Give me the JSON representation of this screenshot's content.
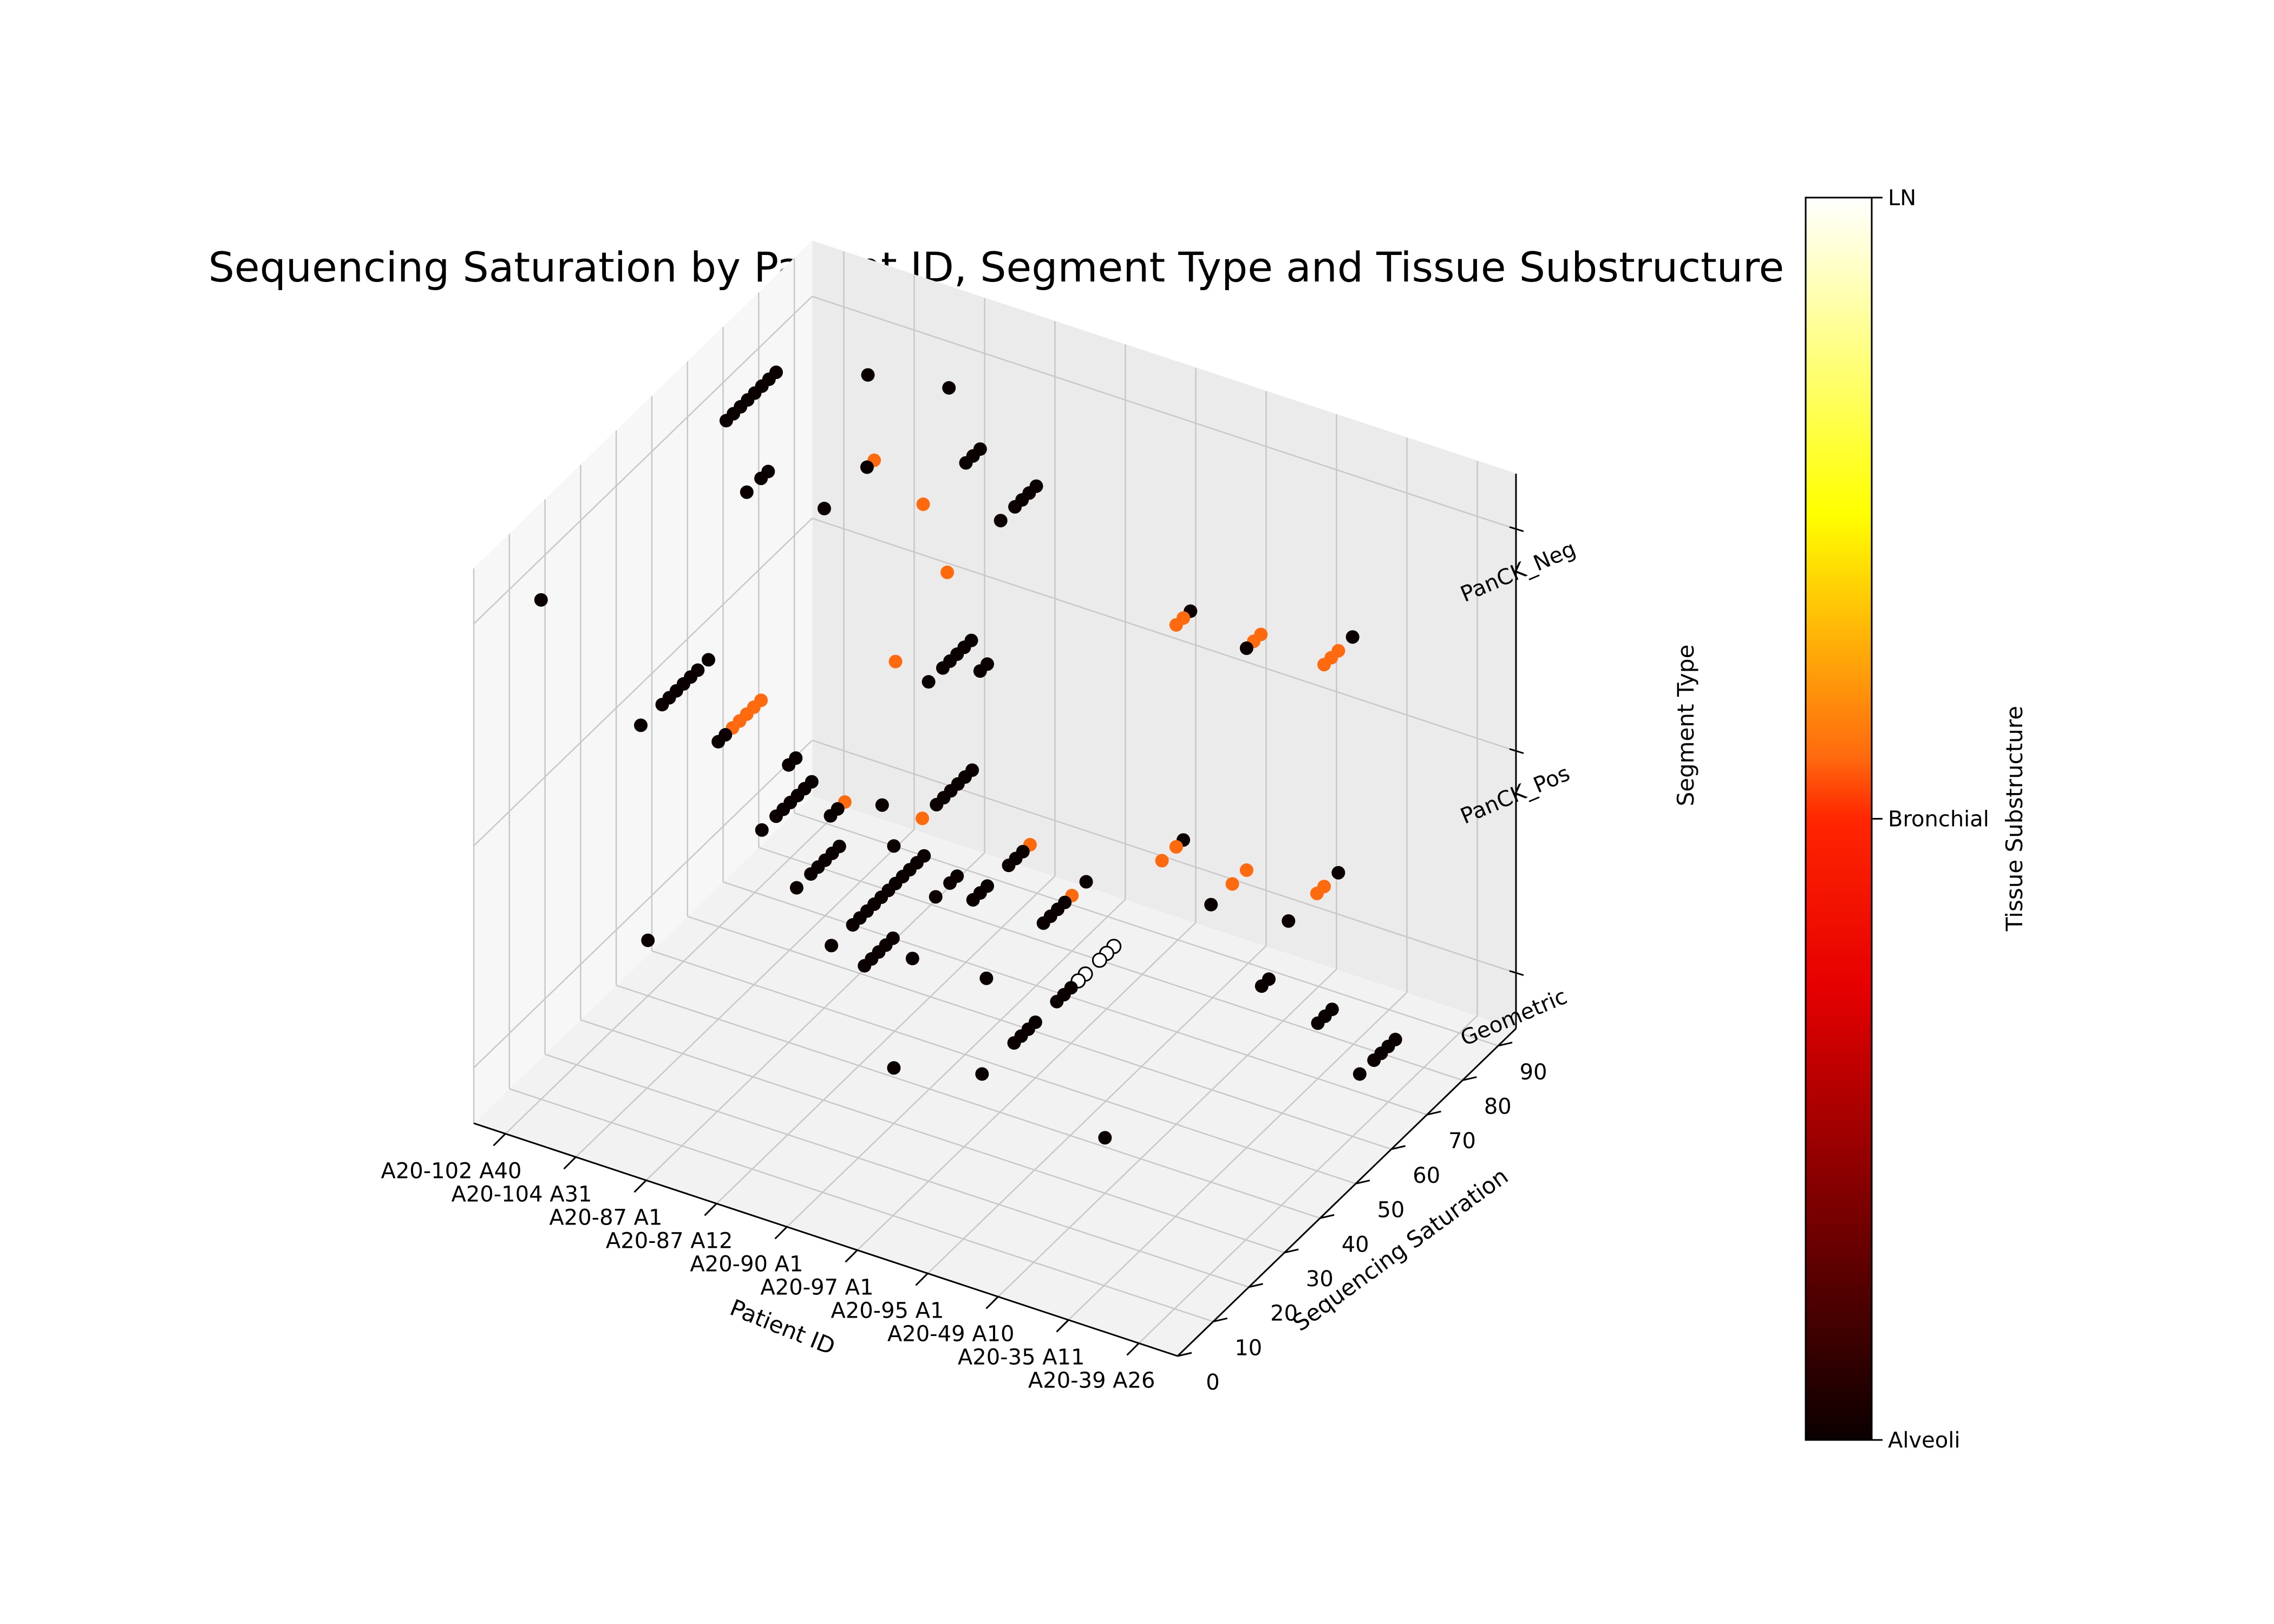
{
  "chart_data": {
    "type": "scatter",
    "projection": "3d",
    "title": "Sequencing Saturation by Patient ID, Segment Type and Tissue Substructure",
    "xlabel": "Patient ID",
    "ylabel": "Sequencing Saturation",
    "zlabel": "Segment Type",
    "x_categories": [
      "A20-102 A40",
      "A20-104 A31",
      "A20-87 A1",
      "A20-87 A12",
      "A20-90 A1",
      "A20-97 A1",
      "A20-95 A1",
      "A20-49 A10",
      "A20-35 A11",
      "A20-39 A26"
    ],
    "z_categories": [
      "Geometric",
      "PanCK_Pos",
      "PanCK_Neg"
    ],
    "y_ticks": [
      0,
      10,
      20,
      30,
      40,
      50,
      60,
      70,
      80,
      90
    ],
    "ylim": [
      0,
      95
    ],
    "grid": true,
    "colorbar": {
      "label": "Tissue Substructure",
      "categories": [
        "Alveoli",
        "Bronchial",
        "LN"
      ],
      "colormap": "hot",
      "colors": {
        "Alveoli": "#0b0000",
        "Bronchial": "#ff6a0f",
        "LN": "#ffffff"
      }
    },
    "points": [
      {
        "x": 0,
        "z": 2,
        "y": 10,
        "c": 0
      },
      {
        "x": 0,
        "z": 2,
        "y": 62,
        "c": 0
      },
      {
        "x": 0,
        "z": 2,
        "y": 64,
        "c": 0
      },
      {
        "x": 0,
        "z": 2,
        "y": 66,
        "c": 0
      },
      {
        "x": 0,
        "z": 2,
        "y": 68,
        "c": 0
      },
      {
        "x": 0,
        "z": 2,
        "y": 70,
        "c": 0
      },
      {
        "x": 0,
        "z": 2,
        "y": 72,
        "c": 0
      },
      {
        "x": 0,
        "z": 2,
        "y": 74,
        "c": 0
      },
      {
        "x": 0,
        "z": 2,
        "y": 76,
        "c": 0
      },
      {
        "x": 1,
        "z": 2,
        "y": 48,
        "c": 0
      },
      {
        "x": 1,
        "z": 2,
        "y": 52,
        "c": 0
      },
      {
        "x": 1,
        "z": 2,
        "y": 54,
        "c": 0
      },
      {
        "x": 1,
        "z": 2,
        "y": 82,
        "c": 0
      },
      {
        "x": 2,
        "z": 2,
        "y": 50,
        "c": 0
      },
      {
        "x": 2,
        "z": 2,
        "y": 62,
        "c": 0
      },
      {
        "x": 2,
        "z": 2,
        "y": 64,
        "c": 1
      },
      {
        "x": 2,
        "z": 2,
        "y": 85,
        "c": 0
      },
      {
        "x": 3,
        "z": 2,
        "y": 58,
        "c": 1
      },
      {
        "x": 3,
        "z": 2,
        "y": 70,
        "c": 0
      },
      {
        "x": 3,
        "z": 2,
        "y": 72,
        "c": 0
      },
      {
        "x": 3,
        "z": 2,
        "y": 74,
        "c": 0
      },
      {
        "x": 4,
        "z": 2,
        "y": 45,
        "c": 1
      },
      {
        "x": 4,
        "z": 2,
        "y": 60,
        "c": 0
      },
      {
        "x": 4,
        "z": 2,
        "y": 64,
        "c": 0
      },
      {
        "x": 4,
        "z": 2,
        "y": 66,
        "c": 0
      },
      {
        "x": 4,
        "z": 2,
        "y": 68,
        "c": 0
      },
      {
        "x": 4,
        "z": 2,
        "y": 70,
        "c": 0
      },
      {
        "x": 5,
        "z": 2,
        "y": 20,
        "c": 0
      },
      {
        "x": 5,
        "z": 2,
        "y": 24,
        "c": 0
      },
      {
        "x": 5,
        "z": 2,
        "y": 26,
        "c": 0
      },
      {
        "x": 5,
        "z": 2,
        "y": 28,
        "c": 0
      },
      {
        "x": 5,
        "z": 2,
        "y": 30,
        "c": 0
      },
      {
        "x": 5,
        "z": 2,
        "y": 32,
        "c": 0
      },
      {
        "x": 7,
        "z": 2,
        "y": 50,
        "c": 1
      },
      {
        "x": 7,
        "z": 2,
        "y": 52,
        "c": 1
      },
      {
        "x": 7,
        "z": 2,
        "y": 54,
        "c": 0
      },
      {
        "x": 8,
        "z": 2,
        "y": 50,
        "c": 0
      },
      {
        "x": 8,
        "z": 2,
        "y": 52,
        "c": 1
      },
      {
        "x": 8,
        "z": 2,
        "y": 54,
        "c": 1
      },
      {
        "x": 9,
        "z": 2,
        "y": 52,
        "c": 1
      },
      {
        "x": 9,
        "z": 2,
        "y": 54,
        "c": 1
      },
      {
        "x": 9,
        "z": 2,
        "y": 56,
        "c": 1
      },
      {
        "x": 9,
        "z": 2,
        "y": 60,
        "c": 0
      },
      {
        "x": 0,
        "z": 1,
        "y": 38,
        "c": 0
      },
      {
        "x": 0,
        "z": 1,
        "y": 44,
        "c": 0
      },
      {
        "x": 0,
        "z": 1,
        "y": 46,
        "c": 0
      },
      {
        "x": 0,
        "z": 1,
        "y": 48,
        "c": 0
      },
      {
        "x": 0,
        "z": 1,
        "y": 50,
        "c": 0
      },
      {
        "x": 0,
        "z": 1,
        "y": 52,
        "c": 0
      },
      {
        "x": 0,
        "z": 1,
        "y": 54,
        "c": 0
      },
      {
        "x": 0,
        "z": 1,
        "y": 57,
        "c": 0
      },
      {
        "x": 1,
        "z": 1,
        "y": 40,
        "c": 0
      },
      {
        "x": 1,
        "z": 1,
        "y": 42,
        "c": 0
      },
      {
        "x": 1,
        "z": 1,
        "y": 44,
        "c": 1
      },
      {
        "x": 1,
        "z": 1,
        "y": 46,
        "c": 1
      },
      {
        "x": 1,
        "z": 1,
        "y": 48,
        "c": 1
      },
      {
        "x": 1,
        "z": 1,
        "y": 50,
        "c": 1
      },
      {
        "x": 1,
        "z": 1,
        "y": 52,
        "c": 1
      },
      {
        "x": 2,
        "z": 1,
        "y": 40,
        "c": 0
      },
      {
        "x": 2,
        "z": 1,
        "y": 42,
        "c": 0
      },
      {
        "x": 2,
        "z": 1,
        "y": 70,
        "c": 1
      },
      {
        "x": 3,
        "z": 1,
        "y": 32,
        "c": 0
      },
      {
        "x": 3,
        "z": 1,
        "y": 34,
        "c": 0
      },
      {
        "x": 3,
        "z": 1,
        "y": 36,
        "c": 1
      },
      {
        "x": 3,
        "z": 1,
        "y": 74,
        "c": 0
      },
      {
        "x": 3,
        "z": 1,
        "y": 76,
        "c": 0
      },
      {
        "x": 4,
        "z": 1,
        "y": 30,
        "c": 0
      },
      {
        "x": 4,
        "z": 1,
        "y": 38,
        "c": 1
      },
      {
        "x": 4,
        "z": 1,
        "y": 42,
        "c": 0
      },
      {
        "x": 4,
        "z": 1,
        "y": 44,
        "c": 0
      },
      {
        "x": 4,
        "z": 1,
        "y": 46,
        "c": 0
      },
      {
        "x": 4,
        "z": 1,
        "y": 48,
        "c": 0
      },
      {
        "x": 4,
        "z": 1,
        "y": 50,
        "c": 0
      },
      {
        "x": 4,
        "z": 1,
        "y": 52,
        "c": 0
      },
      {
        "x": 5,
        "z": 1,
        "y": 22,
        "c": 0
      },
      {
        "x": 5,
        "z": 1,
        "y": 26,
        "c": 0
      },
      {
        "x": 5,
        "z": 1,
        "y": 28,
        "c": 0
      },
      {
        "x": 5,
        "z": 1,
        "y": 2,
        "c": 0
      },
      {
        "x": 5,
        "z": 1,
        "y": 4,
        "c": 0
      },
      {
        "x": 5,
        "z": 1,
        "y": 6,
        "c": 0
      },
      {
        "x": 5,
        "z": 1,
        "y": 8,
        "c": 0
      },
      {
        "x": 5,
        "z": 1,
        "y": 10,
        "c": 0
      },
      {
        "x": 7,
        "z": 1,
        "y": 46,
        "c": 1
      },
      {
        "x": 7,
        "z": 1,
        "y": 50,
        "c": 1
      },
      {
        "x": 7,
        "z": 1,
        "y": 52,
        "c": 0
      },
      {
        "x": 8,
        "z": 1,
        "y": 40,
        "c": 0
      },
      {
        "x": 8,
        "z": 1,
        "y": 46,
        "c": 1
      },
      {
        "x": 8,
        "z": 1,
        "y": 50,
        "c": 1
      },
      {
        "x": 9,
        "z": 1,
        "y": 42,
        "c": 0
      },
      {
        "x": 9,
        "z": 1,
        "y": 50,
        "c": 1
      },
      {
        "x": 9,
        "z": 1,
        "y": 52,
        "c": 1
      },
      {
        "x": 9,
        "z": 1,
        "y": 56,
        "c": 0
      },
      {
        "x": 0,
        "z": 0,
        "y": 40,
        "c": 0
      },
      {
        "x": 0,
        "z": 0,
        "y": 72,
        "c": 0
      },
      {
        "x": 0,
        "z": 0,
        "y": 76,
        "c": 0
      },
      {
        "x": 0,
        "z": 0,
        "y": 78,
        "c": 0
      },
      {
        "x": 0,
        "z": 0,
        "y": 80,
        "c": 0
      },
      {
        "x": 0,
        "z": 0,
        "y": 82,
        "c": 0
      },
      {
        "x": 0,
        "z": 0,
        "y": 84,
        "c": 0
      },
      {
        "x": 0,
        "z": 0,
        "y": 86,
        "c": 0
      },
      {
        "x": 1,
        "z": 0,
        "y": 62,
        "c": 0
      },
      {
        "x": 1,
        "z": 0,
        "y": 66,
        "c": 0
      },
      {
        "x": 1,
        "z": 0,
        "y": 68,
        "c": 0
      },
      {
        "x": 1,
        "z": 0,
        "y": 70,
        "c": 0
      },
      {
        "x": 1,
        "z": 0,
        "y": 72,
        "c": 0
      },
      {
        "x": 1,
        "z": 0,
        "y": 74,
        "c": 0
      },
      {
        "x": 1,
        "z": 0,
        "y": 86,
        "c": 0
      },
      {
        "x": 2,
        "z": 0,
        "y": 52,
        "c": 0
      },
      {
        "x": 2,
        "z": 0,
        "y": 58,
        "c": 0
      },
      {
        "x": 2,
        "z": 0,
        "y": 60,
        "c": 0
      },
      {
        "x": 2,
        "z": 0,
        "y": 62,
        "c": 0
      },
      {
        "x": 2,
        "z": 0,
        "y": 64,
        "c": 0
      },
      {
        "x": 2,
        "z": 0,
        "y": 66,
        "c": 0
      },
      {
        "x": 2,
        "z": 0,
        "y": 68,
        "c": 0
      },
      {
        "x": 2,
        "z": 0,
        "y": 70,
        "c": 0
      },
      {
        "x": 2,
        "z": 0,
        "y": 72,
        "c": 0
      },
      {
        "x": 2,
        "z": 0,
        "y": 74,
        "c": 0
      },
      {
        "x": 2,
        "z": 0,
        "y": 76,
        "c": 0
      },
      {
        "x": 2,
        "z": 0,
        "y": 78,
        "c": 0
      },
      {
        "x": 3,
        "z": 0,
        "y": 55,
        "c": 0
      },
      {
        "x": 3,
        "z": 0,
        "y": 72,
        "c": 0
      },
      {
        "x": 3,
        "z": 0,
        "y": 74,
        "c": 0
      },
      {
        "x": 3,
        "z": 0,
        "y": 76,
        "c": 0
      },
      {
        "x": 3,
        "z": 0,
        "y": 82,
        "c": 0
      },
      {
        "x": 3,
        "z": 0,
        "y": 84,
        "c": 0
      },
      {
        "x": 3,
        "z": 0,
        "y": 86,
        "c": 0
      },
      {
        "x": 3,
        "z": 0,
        "y": 88,
        "c": 1
      },
      {
        "x": 4,
        "z": 0,
        "y": 30,
        "c": 0
      },
      {
        "x": 4,
        "z": 0,
        "y": 56,
        "c": 0
      },
      {
        "x": 4,
        "z": 0,
        "y": 72,
        "c": 0
      },
      {
        "x": 4,
        "z": 0,
        "y": 74,
        "c": 0
      },
      {
        "x": 4,
        "z": 0,
        "y": 76,
        "c": 0
      },
      {
        "x": 4,
        "z": 0,
        "y": 78,
        "c": 0
      },
      {
        "x": 4,
        "z": 0,
        "y": 80,
        "c": 1
      },
      {
        "x": 4,
        "z": 0,
        "y": 84,
        "c": 0
      },
      {
        "x": 5,
        "z": 0,
        "y": 35,
        "c": 0
      },
      {
        "x": 5,
        "z": 0,
        "y": 44,
        "c": 0
      },
      {
        "x": 5,
        "z": 0,
        "y": 46,
        "c": 0
      },
      {
        "x": 5,
        "z": 0,
        "y": 48,
        "c": 0
      },
      {
        "x": 5,
        "z": 0,
        "y": 50,
        "c": 0
      },
      {
        "x": 5,
        "z": 0,
        "y": 56,
        "c": 0
      },
      {
        "x": 5,
        "z": 0,
        "y": 58,
        "c": 0
      },
      {
        "x": 5,
        "z": 0,
        "y": 60,
        "c": 0
      },
      {
        "x": 5,
        "z": 0,
        "y": 62,
        "c": 2
      },
      {
        "x": 5,
        "z": 0,
        "y": 64,
        "c": 2
      },
      {
        "x": 5,
        "z": 0,
        "y": 68,
        "c": 2
      },
      {
        "x": 5,
        "z": 0,
        "y": 70,
        "c": 2
      },
      {
        "x": 5,
        "z": 0,
        "y": 72,
        "c": 2
      },
      {
        "x": 7,
        "z": 0,
        "y": 30,
        "c": 0
      },
      {
        "x": 7,
        "z": 0,
        "y": 74,
        "c": 0
      },
      {
        "x": 7,
        "z": 0,
        "y": 76,
        "c": 0
      },
      {
        "x": 8,
        "z": 0,
        "y": 70,
        "c": 0
      },
      {
        "x": 8,
        "z": 0,
        "y": 72,
        "c": 0
      },
      {
        "x": 8,
        "z": 0,
        "y": 74,
        "c": 0
      },
      {
        "x": 9,
        "z": 0,
        "y": 62,
        "c": 0
      },
      {
        "x": 9,
        "z": 0,
        "y": 66,
        "c": 0
      },
      {
        "x": 9,
        "z": 0,
        "y": 68,
        "c": 0
      },
      {
        "x": 9,
        "z": 0,
        "y": 70,
        "c": 0
      },
      {
        "x": 9,
        "z": 0,
        "y": 72,
        "c": 0
      }
    ]
  }
}
